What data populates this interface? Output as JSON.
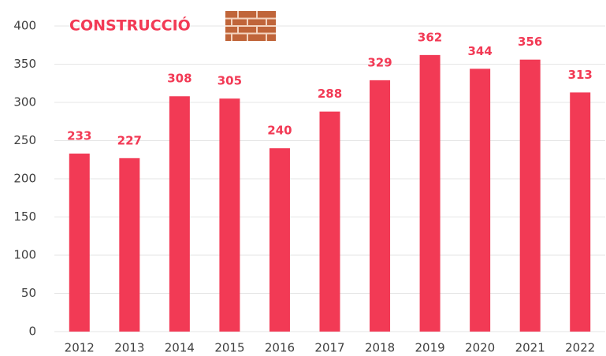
{
  "chart_data": {
    "type": "bar",
    "title": "CONSTRUCCIÓ",
    "categories": [
      "2012",
      "2013",
      "2014",
      "2015",
      "2016",
      "2017",
      "2018",
      "2019",
      "2020",
      "2021",
      "2022"
    ],
    "values": [
      233,
      227,
      308,
      305,
      240,
      288,
      329,
      362,
      344,
      356,
      313
    ],
    "color": "#f23a55",
    "ylim": [
      0,
      400
    ],
    "yticks": [
      0,
      50,
      100,
      150,
      200,
      250,
      300,
      350,
      400
    ],
    "grid": true
  }
}
